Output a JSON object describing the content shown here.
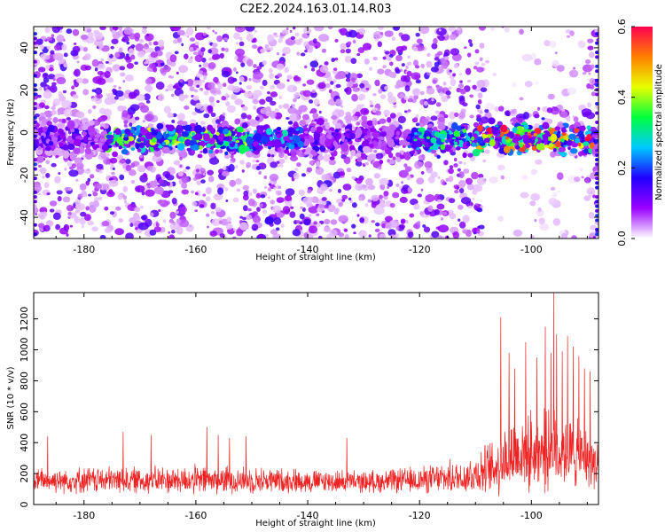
{
  "title": "C2E2.2024.163.01.14.R03",
  "chart_data": [
    {
      "type": "heatmap",
      "xlabel": "Height of straight line (km)",
      "ylabel": "Frequency (Hz)",
      "xlim": [
        -189,
        -88
      ],
      "ylim": [
        -50,
        50
      ],
      "xticks": [
        -180,
        -160,
        -140,
        -120,
        -100
      ],
      "yticks": [
        -40,
        -20,
        0,
        20,
        40
      ],
      "colorbar": {
        "label": "Normalized spectral amplitude",
        "range": [
          0.0,
          0.6
        ],
        "ticks": [
          "0.0",
          "0.2",
          "0.4",
          "0.6"
        ],
        "colors": [
          "#ffffff",
          "#9a00ff",
          "#2200ff",
          "#00c8ff",
          "#00ff40",
          "#e8ff00",
          "#ff8000",
          "#ff0050"
        ]
      },
      "signal_band": {
        "center_hz": -3,
        "segments": [
          {
            "x_start": -176,
            "x_end": -150,
            "peak": 0.35
          },
          {
            "x_start": -150,
            "x_end": -141,
            "peak": 0.22
          },
          {
            "x_start": -122,
            "x_end": -110,
            "peak": 0.3
          },
          {
            "x_start": -110,
            "x_end": -89,
            "peak": 0.55
          }
        ]
      }
    },
    {
      "type": "line",
      "xlabel": "Height of straight line (km)",
      "ylabel": "SNR (10 * v/v)",
      "xlim": [
        -189,
        -88
      ],
      "ylim": [
        0,
        1370
      ],
      "xticks": [
        -180,
        -160,
        -140,
        -120,
        -100
      ],
      "yticks": [
        0,
        200,
        400,
        600,
        800,
        1000,
        1200
      ],
      "series_color": "#ee2222",
      "envelope": {
        "x": [
          -189,
          -180,
          -170,
          -160,
          -150,
          -140,
          -130,
          -120,
          -112,
          -106,
          -104,
          -100,
          -96,
          -92,
          -88
        ],
        "baseline": [
          150,
          150,
          150,
          150,
          150,
          145,
          140,
          150,
          170,
          230,
          300,
          320,
          320,
          300,
          250
        ],
        "spread": [
          90,
          100,
          100,
          110,
          100,
          90,
          80,
          100,
          130,
          220,
          280,
          300,
          300,
          260,
          180
        ]
      },
      "peaks": [
        {
          "x": -186.5,
          "y": 440
        },
        {
          "x": -173,
          "y": 470
        },
        {
          "x": -168,
          "y": 450
        },
        {
          "x": -158,
          "y": 500
        },
        {
          "x": -156,
          "y": 450
        },
        {
          "x": -154,
          "y": 430
        },
        {
          "x": -151,
          "y": 440
        },
        {
          "x": -133,
          "y": 430
        },
        {
          "x": -105.5,
          "y": 1210
        },
        {
          "x": -104,
          "y": 980
        },
        {
          "x": -103,
          "y": 880
        },
        {
          "x": -101,
          "y": 1050
        },
        {
          "x": -99,
          "y": 950
        },
        {
          "x": -97.5,
          "y": 1150
        },
        {
          "x": -96.5,
          "y": 980
        },
        {
          "x": -96,
          "y": 1370
        },
        {
          "x": -95.5,
          "y": 1100
        },
        {
          "x": -94.5,
          "y": 990
        },
        {
          "x": -93.5,
          "y": 1090
        },
        {
          "x": -92.5,
          "y": 1020
        },
        {
          "x": -91.5,
          "y": 960
        },
        {
          "x": -90.5,
          "y": 880
        },
        {
          "x": -89.5,
          "y": 860
        }
      ]
    }
  ]
}
